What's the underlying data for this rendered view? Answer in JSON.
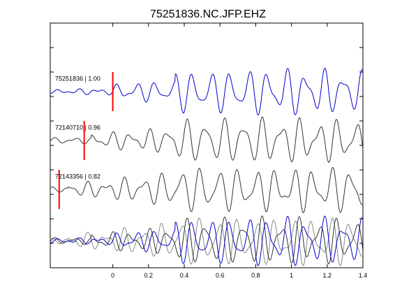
{
  "chart_data": {
    "type": "line",
    "title": "75251836.NC.JFP.EHZ",
    "xlabel": "",
    "ylabel": "",
    "xlim": [
      -0.35,
      1.4
    ],
    "ylim": [
      0,
      10
    ],
    "x_ticks": [
      0,
      0.2,
      0.4,
      0.6,
      0.8,
      1,
      1.2,
      1.4
    ],
    "x_tick_labels": [
      "0",
      "0.2",
      "0.4",
      "0.6",
      "0.8",
      "1",
      "1.2",
      "1.4"
    ],
    "y_ticks": [
      0,
      1,
      2,
      3,
      4,
      5,
      6,
      7,
      8,
      9,
      10
    ],
    "grid": false,
    "colors": {
      "master": "#0000cc",
      "secondary": "#333333",
      "overlay_gray": "#888888",
      "pick": "#ff0000"
    },
    "series": [
      {
        "label": "75251836 | 1.00",
        "color": "#0000cc",
        "baseline": 7.2,
        "pick_x": 0.0,
        "phase": 0.0,
        "lag": 0.0,
        "onset": 0.0
      },
      {
        "label": "72140710 | 0.96",
        "color": "#333333",
        "baseline": 5.2,
        "pick_x": -0.16,
        "phase": 0.3,
        "lag": 0.0,
        "onset": -0.12
      },
      {
        "label": "72143356 | 0.82",
        "color": "#333333",
        "baseline": 3.2,
        "pick_x": -0.3,
        "phase": 0.6,
        "lag": 0.0,
        "onset": -0.25
      }
    ],
    "overlay_baseline": 1.1
  }
}
